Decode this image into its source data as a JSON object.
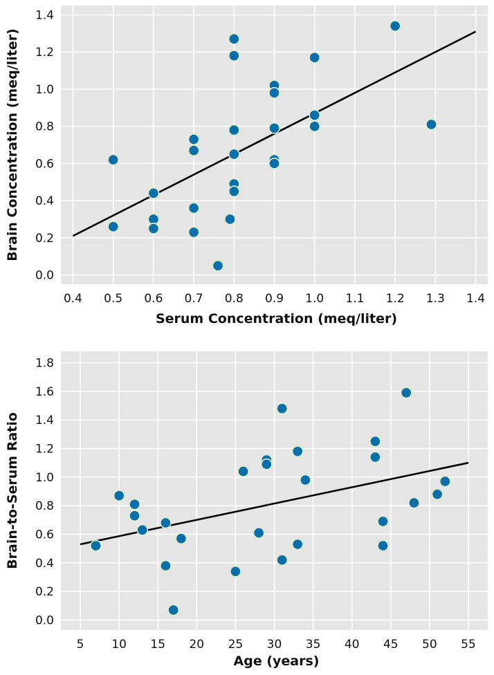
{
  "colors": {
    "panel": "#e5e5e5",
    "grid": "#ffffff",
    "point": "#0a6eaa",
    "point_edge": "#dff0c8",
    "line": "#000000"
  },
  "chart_data": [
    {
      "type": "scatter",
      "xlabel": "Serum Concentration (meq/liter)",
      "ylabel": "Brain Concentration (meq/liter)",
      "xlim": [
        0.37,
        1.43
      ],
      "ylim": [
        -0.05,
        1.45
      ],
      "x_ticks": [
        0.4,
        0.5,
        0.6,
        0.7,
        0.8,
        0.9,
        1.0,
        1.1,
        1.2,
        1.3,
        1.4
      ],
      "x_tick_labels": [
        "0.4",
        "0.5",
        "0.6",
        "0.7",
        "0.8",
        "0.9",
        "1.0",
        "1.1",
        "1.2",
        "1.3",
        "1.4"
      ],
      "y_ticks": [
        0.0,
        0.2,
        0.4,
        0.6,
        0.8,
        1.0,
        1.2,
        1.4
      ],
      "y_tick_labels": [
        "0.0",
        "0.2",
        "0.4",
        "0.6",
        "0.8",
        "1.0",
        "1.2",
        "1.4"
      ],
      "grid": true,
      "points": [
        {
          "x": 0.5,
          "y": 0.62
        },
        {
          "x": 0.5,
          "y": 0.26
        },
        {
          "x": 0.6,
          "y": 0.44
        },
        {
          "x": 0.6,
          "y": 0.3
        },
        {
          "x": 0.6,
          "y": 0.25
        },
        {
          "x": 0.7,
          "y": 0.73
        },
        {
          "x": 0.7,
          "y": 0.67
        },
        {
          "x": 0.7,
          "y": 0.36
        },
        {
          "x": 0.7,
          "y": 0.23
        },
        {
          "x": 0.76,
          "y": 0.05
        },
        {
          "x": 0.79,
          "y": 0.3
        },
        {
          "x": 0.8,
          "y": 1.27
        },
        {
          "x": 0.8,
          "y": 1.18
        },
        {
          "x": 0.8,
          "y": 0.78
        },
        {
          "x": 0.8,
          "y": 0.65
        },
        {
          "x": 0.8,
          "y": 0.49
        },
        {
          "x": 0.8,
          "y": 0.45
        },
        {
          "x": 0.9,
          "y": 1.02
        },
        {
          "x": 0.9,
          "y": 0.98
        },
        {
          "x": 0.9,
          "y": 0.79
        },
        {
          "x": 0.9,
          "y": 0.62
        },
        {
          "x": 0.9,
          "y": 0.6
        },
        {
          "x": 1.0,
          "y": 1.17
        },
        {
          "x": 1.0,
          "y": 0.86
        },
        {
          "x": 1.0,
          "y": 0.8
        },
        {
          "x": 1.2,
          "y": 1.34
        },
        {
          "x": 1.29,
          "y": 0.81
        }
      ],
      "trendline": {
        "x": [
          0.4,
          1.4
        ],
        "y": [
          0.21,
          1.31
        ]
      }
    },
    {
      "type": "scatter",
      "xlabel": "Age (years)",
      "ylabel": "Brain-to-Serum Ratio",
      "xlim": [
        2.5,
        57.5
      ],
      "ylim": [
        -0.07,
        1.88
      ],
      "x_ticks": [
        5,
        10,
        15,
        20,
        25,
        30,
        35,
        40,
        45,
        50,
        55
      ],
      "x_tick_labels": [
        "5",
        "10",
        "15",
        "20",
        "25",
        "30",
        "35",
        "40",
        "45",
        "50",
        "55"
      ],
      "y_ticks": [
        0.0,
        0.2,
        0.4,
        0.6,
        0.8,
        1.0,
        1.2,
        1.4,
        1.6,
        1.8
      ],
      "y_tick_labels": [
        "0.0",
        "0.2",
        "0.4",
        "0.6",
        "0.8",
        "1.0",
        "1.2",
        "1.4",
        "1.6",
        "1.8"
      ],
      "grid": true,
      "points": [
        {
          "x": 7,
          "y": 0.52
        },
        {
          "x": 10,
          "y": 0.87
        },
        {
          "x": 12,
          "y": 0.81
        },
        {
          "x": 12,
          "y": 0.73
        },
        {
          "x": 13,
          "y": 0.63
        },
        {
          "x": 16,
          "y": 0.68
        },
        {
          "x": 16,
          "y": 0.38
        },
        {
          "x": 17,
          "y": 0.07
        },
        {
          "x": 18,
          "y": 0.57
        },
        {
          "x": 25,
          "y": 0.34
        },
        {
          "x": 26,
          "y": 1.04
        },
        {
          "x": 28,
          "y": 0.61
        },
        {
          "x": 29,
          "y": 1.12
        },
        {
          "x": 29,
          "y": 1.09
        },
        {
          "x": 31,
          "y": 1.48
        },
        {
          "x": 31,
          "y": 0.42
        },
        {
          "x": 33,
          "y": 1.18
        },
        {
          "x": 33,
          "y": 0.53
        },
        {
          "x": 34,
          "y": 0.98
        },
        {
          "x": 43,
          "y": 1.25
        },
        {
          "x": 43,
          "y": 1.14
        },
        {
          "x": 44,
          "y": 0.69
        },
        {
          "x": 44,
          "y": 0.52
        },
        {
          "x": 47,
          "y": 1.59
        },
        {
          "x": 48,
          "y": 0.82
        },
        {
          "x": 51,
          "y": 0.88
        },
        {
          "x": 52,
          "y": 0.97
        }
      ],
      "trendline": {
        "x": [
          5,
          55
        ],
        "y": [
          0.53,
          1.1
        ]
      }
    }
  ]
}
